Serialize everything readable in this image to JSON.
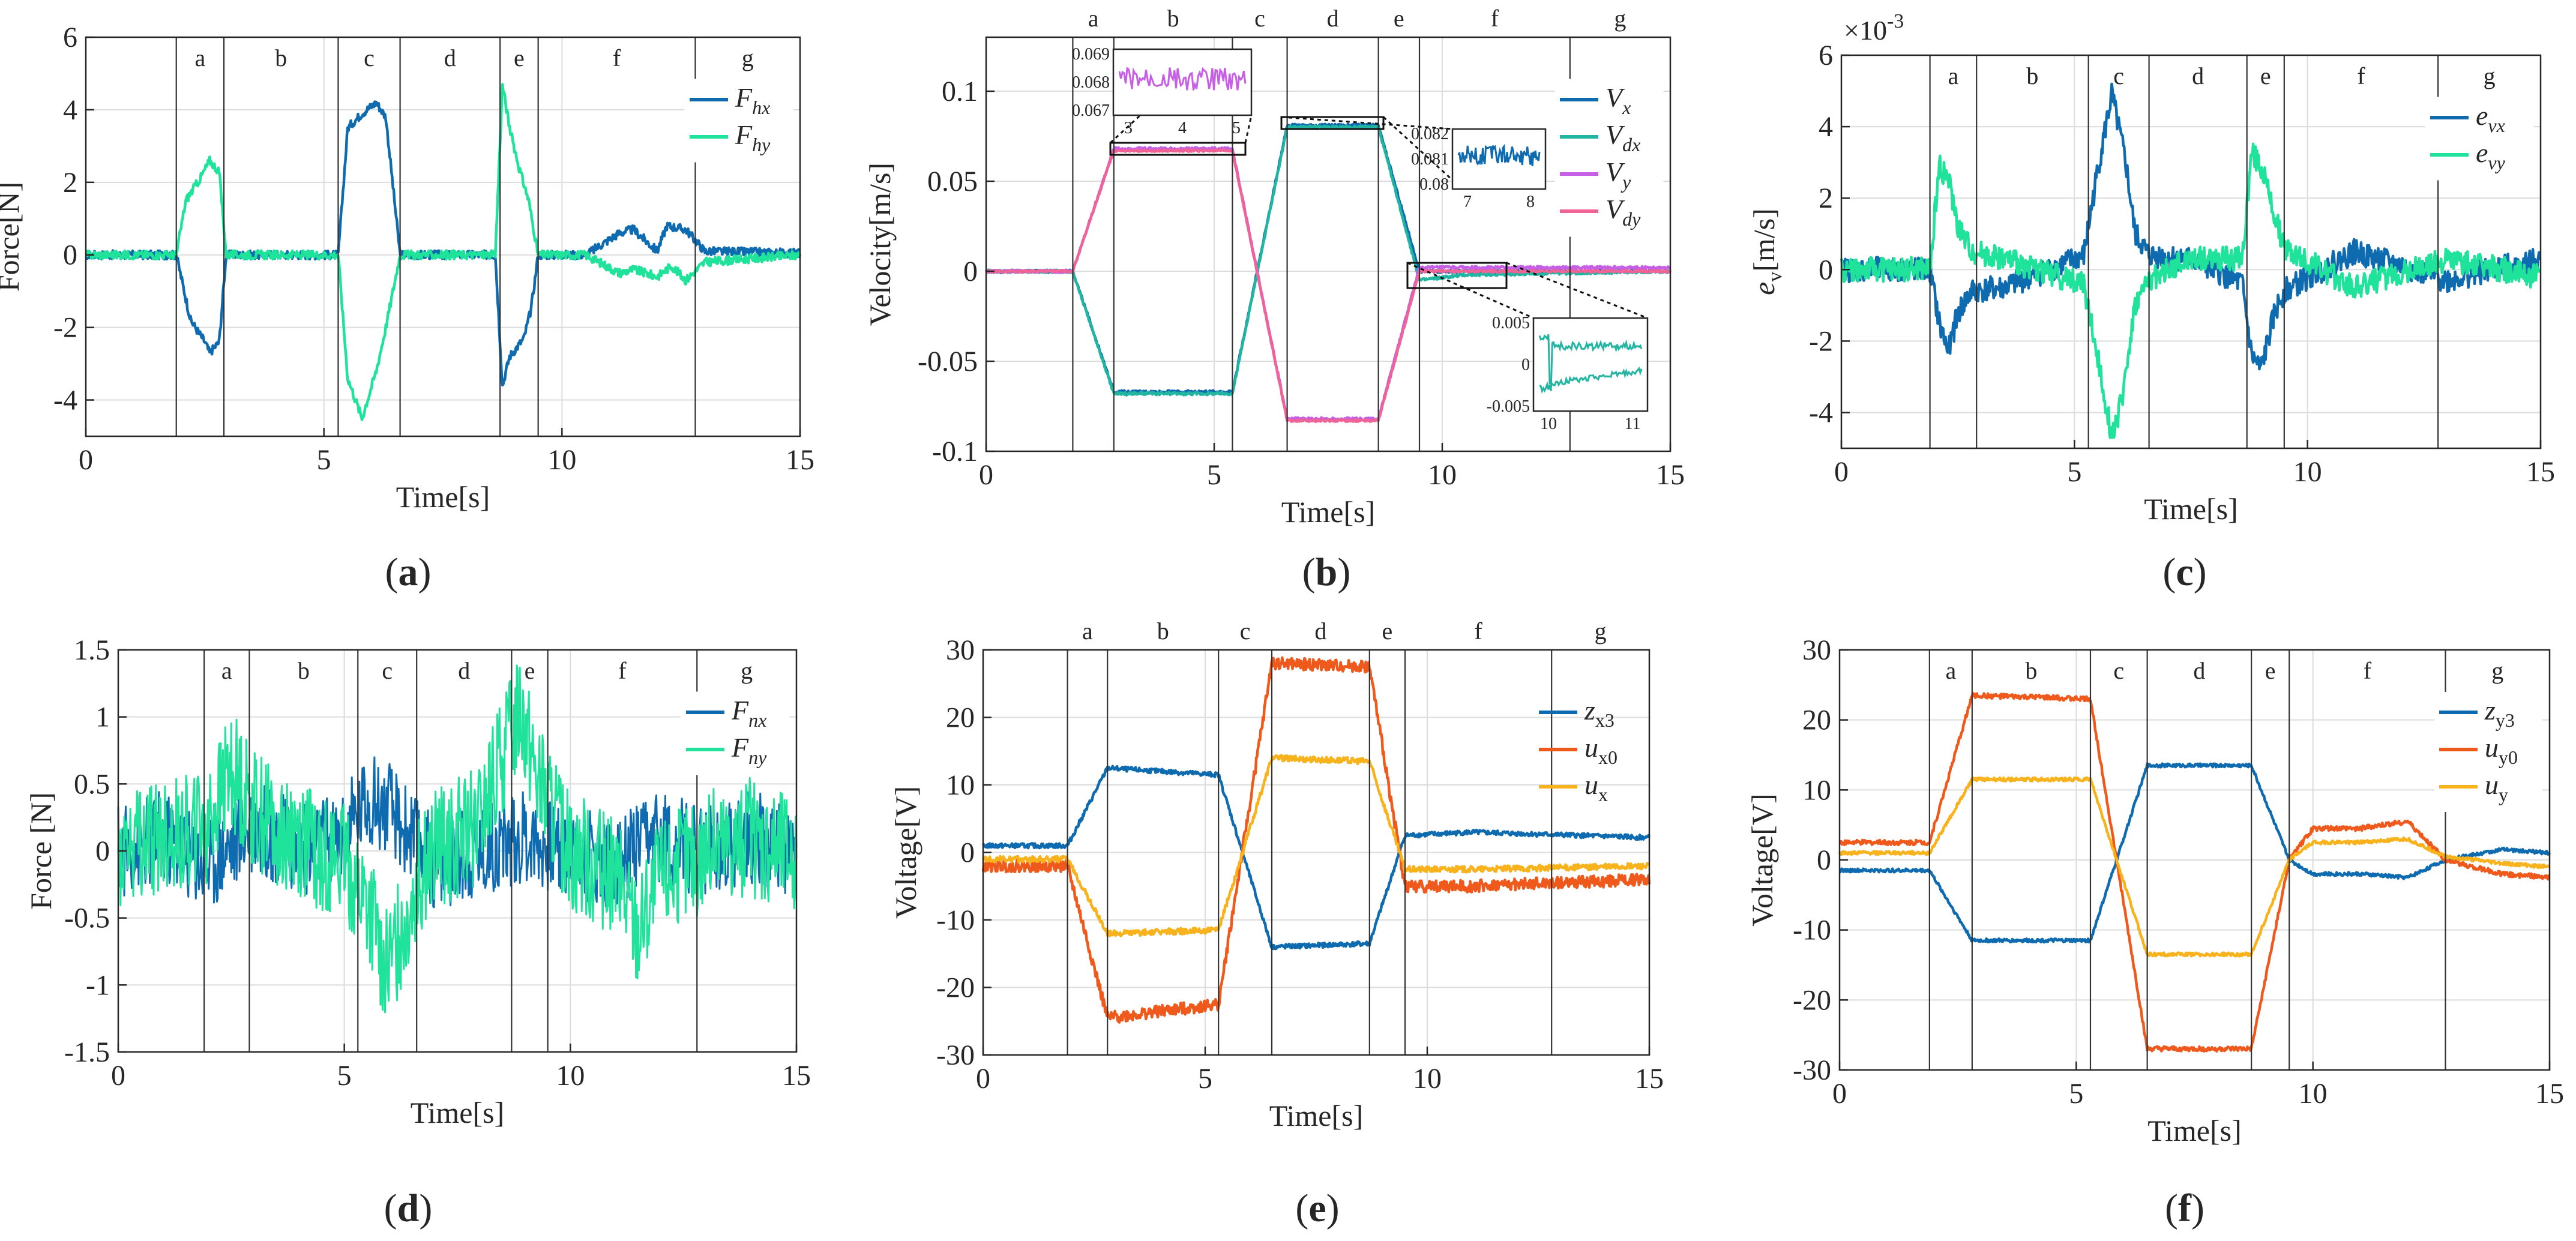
{
  "figure": {
    "panel_labels": [
      "(a)",
      "(b)",
      "(c)",
      "(d)",
      "(e)",
      "(f)"
    ]
  },
  "colors": {
    "blue": "#0f6bb0",
    "green": "#1fe39a",
    "teal": "#22b5a2",
    "magenta": "#c65ee6",
    "pink": "#ef6396",
    "orange": "#ef5a1c",
    "yellow": "#f7b21c"
  },
  "chart_data": [
    {
      "id": "a",
      "type": "line",
      "xlabel": "Time[s]",
      "ylabel": "Force[N]",
      "xlim": [
        0,
        15
      ],
      "ylim": [
        -5,
        6
      ],
      "xticks": [
        0,
        5,
        10,
        15
      ],
      "yticks": [
        -4,
        -2,
        0,
        2,
        4,
        6
      ],
      "grid": true,
      "legend": "top-right",
      "phase_boundaries": [
        1.9,
        2.9,
        5.3,
        6.6,
        8.7,
        9.5,
        12.8
      ],
      "phase_labels": [
        "a",
        "b",
        "c",
        "d",
        "e",
        "f",
        "g"
      ],
      "series": [
        {
          "name": "F",
          "sub": "hx",
          "color": "blue",
          "x": [
            0,
            1.9,
            2.2,
            2.5,
            2.6,
            2.8,
            2.95,
            3.5,
            5.3,
            5.5,
            5.8,
            6.1,
            6.3,
            6.6,
            7.5,
            8.6,
            8.75,
            8.9,
            9.2,
            9.35,
            9.5,
            10.5,
            11.2,
            11.5,
            12,
            12.2,
            12.6,
            13,
            15
          ],
          "y": [
            0,
            0,
            -1.8,
            -2.4,
            -2.7,
            -2.4,
            0,
            0,
            0,
            3.5,
            3.9,
            4.2,
            3.8,
            0,
            0,
            0,
            -3.6,
            -2.8,
            -2.3,
            -1.5,
            0,
            0,
            0.6,
            0.7,
            0.1,
            0.8,
            0.7,
            0.1,
            0.05
          ]
        },
        {
          "name": "F",
          "sub": "hy",
          "color": "green",
          "x": [
            0,
            1.9,
            2.1,
            2.4,
            2.6,
            2.8,
            2.95,
            3.5,
            5.3,
            5.5,
            5.8,
            6.1,
            6.3,
            6.6,
            7.5,
            8.6,
            8.75,
            8.9,
            9.1,
            9.3,
            9.5,
            10.5,
            11.2,
            11.5,
            12,
            12.3,
            12.6,
            13,
            15
          ],
          "y": [
            0,
            0,
            1.5,
            2.1,
            2.6,
            2.3,
            0,
            0,
            0,
            -3.4,
            -4.5,
            -3.2,
            -2.0,
            0,
            0,
            0,
            4.7,
            3.5,
            2.4,
            1.5,
            0,
            0,
            -0.5,
            -0.4,
            -0.6,
            -0.3,
            -0.7,
            -0.2,
            0
          ]
        }
      ]
    },
    {
      "id": "b",
      "type": "line",
      "xlabel": "Time[s]",
      "ylabel": "Velocity[m/s]",
      "xlim": [
        0,
        15
      ],
      "ylim": [
        -0.1,
        0.13
      ],
      "xticks": [
        0,
        5,
        10,
        15
      ],
      "yticks": [
        -0.1,
        -0.05,
        0,
        0.05,
        0.1
      ],
      "grid": true,
      "legend": "top-right",
      "phase_boundaries": [
        1.9,
        2.8,
        5.4,
        6.6,
        8.6,
        9.5,
        12.8
      ],
      "phase_labels": [
        "a",
        "b",
        "c",
        "d",
        "e",
        "f",
        "g"
      ],
      "series": [
        {
          "name": "V",
          "sub": "x",
          "color": "blue",
          "x": [
            0,
            1.9,
            2.8,
            5.4,
            6.6,
            8.6,
            9.5,
            15
          ],
          "y": [
            0,
            0,
            -0.067,
            -0.067,
            0.081,
            0.081,
            0,
            0
          ]
        },
        {
          "name": "V",
          "sub": "dx",
          "color": "teal",
          "x": [
            0,
            1.9,
            2.8,
            5.4,
            6.6,
            8.6,
            9.5,
            10.5,
            15
          ],
          "y": [
            0,
            0,
            -0.068,
            -0.068,
            0.08,
            0.08,
            -0.005,
            -0.002,
            0
          ]
        },
        {
          "name": "V",
          "sub": "y",
          "color": "magenta",
          "x": [
            0,
            1.9,
            2.8,
            5.4,
            6.6,
            8.6,
            9.5,
            15
          ],
          "y": [
            0,
            0,
            0.068,
            0.068,
            -0.082,
            -0.082,
            0.002,
            0.002
          ]
        },
        {
          "name": "V",
          "sub": "dy",
          "color": "pink",
          "x": [
            0,
            1.9,
            2.8,
            5.4,
            6.6,
            8.6,
            9.5,
            15
          ],
          "y": [
            0,
            0,
            0.067,
            0.067,
            -0.083,
            -0.083,
            0,
            0
          ]
        }
      ],
      "insets": [
        {
          "xticks": [
            "3",
            "4",
            "5"
          ],
          "yticks": [
            "0.069",
            "0.068",
            "0.067"
          ]
        },
        {
          "xticks": [
            "7",
            "8"
          ],
          "yticks": [
            "0.082",
            "0.081",
            "0.08"
          ]
        },
        {
          "xticks": [
            "10",
            "11"
          ],
          "yticks": [
            "0.005",
            "0",
            "-0.005"
          ]
        }
      ]
    },
    {
      "id": "c",
      "type": "line",
      "xlabel": "Time[s]",
      "ylabel_main": "e",
      "ylabel_sub": "v",
      "ylabel_unit": "[m/s]",
      "exponent": "×10",
      "exponent_power": "-3",
      "xlim": [
        0,
        15
      ],
      "ylim": [
        -5,
        6
      ],
      "xticks": [
        0,
        5,
        10,
        15
      ],
      "yticks": [
        -4,
        -2,
        0,
        2,
        4,
        6
      ],
      "grid": true,
      "legend": "top-right",
      "phase_boundaries": [
        1.9,
        2.9,
        5.3,
        6.6,
        8.7,
        9.5,
        12.8
      ],
      "phase_labels": [
        "a",
        "b",
        "c",
        "d",
        "e",
        "f",
        "g"
      ],
      "series": [
        {
          "name": "e",
          "sub": "vx",
          "color": "blue",
          "x": [
            0,
            1.9,
            2.1,
            2.3,
            2.5,
            2.8,
            3.5,
            5.2,
            5.5,
            5.8,
            6.1,
            6.3,
            6.6,
            7.5,
            8.6,
            8.8,
            9.0,
            9.3,
            9.5,
            11,
            13,
            15
          ],
          "y": [
            0,
            0,
            -1.5,
            -2.3,
            -1.2,
            -0.6,
            -0.5,
            0.4,
            2.8,
            4.9,
            3.0,
            1.0,
            0.4,
            0.3,
            -0.4,
            -2.4,
            -2.8,
            -1.2,
            -0.6,
            0.5,
            -0.3,
            0.3
          ]
        },
        {
          "name": "e",
          "sub": "vy",
          "color": "green",
          "x": [
            0,
            1.9,
            2.1,
            2.3,
            2.5,
            2.8,
            3.5,
            5.2,
            5.5,
            5.8,
            6.0,
            6.3,
            6.6,
            7.5,
            8.6,
            8.8,
            9.0,
            9.3,
            9.5,
            11,
            13,
            15
          ],
          "y": [
            0,
            0,
            2.9,
            2.5,
            1.2,
            0.5,
            0.3,
            -0.4,
            -2.5,
            -4.6,
            -3.8,
            -1.0,
            -0.3,
            0.3,
            0.3,
            3.3,
            2.9,
            1.5,
            0.6,
            -0.5,
            0.3,
            -0.2
          ]
        }
      ]
    },
    {
      "id": "d",
      "type": "line",
      "xlabel": "Time[s]",
      "ylabel": "Force [N]",
      "xlim": [
        0,
        15
      ],
      "ylim": [
        -1.5,
        1.5
      ],
      "xticks": [
        0,
        5,
        10,
        15
      ],
      "yticks": [
        -1.5,
        -1,
        -0.5,
        0,
        0.5,
        1,
        1.5
      ],
      "grid": true,
      "legend": "top-right",
      "phase_boundaries": [
        1.9,
        2.9,
        5.3,
        6.6,
        8.7,
        9.5,
        12.8
      ],
      "phase_labels": [
        "a",
        "b",
        "c",
        "d",
        "e",
        "f",
        "g"
      ],
      "series": [
        {
          "name": "F",
          "sub": "nx",
          "color": "blue",
          "x": [
            0,
            1,
            2,
            3,
            4,
            5,
            5.5,
            6,
            6.5,
            7,
            8,
            9,
            10,
            11,
            12,
            13,
            14,
            15
          ],
          "y": [
            0,
            0.1,
            -0.1,
            0.2,
            0,
            0.1,
            0.4,
            0.3,
            0.1,
            -0.1,
            0,
            0.1,
            0,
            -0.1,
            0.1,
            0,
            0.1,
            0
          ]
        },
        {
          "name": "F",
          "sub": "ny",
          "color": "green",
          "x": [
            0,
            1,
            2,
            2.5,
            3,
            4,
            5,
            5.5,
            6,
            6.5,
            7,
            8,
            8.9,
            9.3,
            10,
            11,
            11.5,
            12,
            13,
            14,
            15
          ],
          "y": [
            0,
            0.1,
            0.2,
            0.6,
            0.3,
            0.1,
            -0.1,
            -0.4,
            -0.9,
            -0.3,
            0,
            0.2,
            1.1,
            0.5,
            0,
            -0.2,
            -0.6,
            -0.2,
            0,
            0.1,
            0
          ]
        }
      ]
    },
    {
      "id": "e",
      "type": "line",
      "xlabel": "Time[s]",
      "ylabel": "Voltage[V]",
      "xlim": [
        0,
        15
      ],
      "ylim": [
        -30,
        30
      ],
      "xticks": [
        0,
        5,
        10,
        15
      ],
      "yticks": [
        -30,
        -20,
        -10,
        0,
        10,
        20,
        30
      ],
      "grid": true,
      "legend": "top-right",
      "phase_boundaries": [
        1.9,
        2.8,
        5.3,
        6.5,
        8.7,
        9.5,
        12.8
      ],
      "phase_labels": [
        "a",
        "b",
        "c",
        "d",
        "e",
        "f",
        "g"
      ],
      "series": [
        {
          "name": "z",
          "sub": "x3",
          "color": "blue",
          "x": [
            0,
            1.9,
            2.8,
            5.3,
            6.5,
            8.7,
            9.5,
            11,
            15
          ],
          "y": [
            1,
            1,
            12.5,
            11.5,
            -14,
            -13.5,
            2.5,
            3,
            2.2
          ]
        },
        {
          "name": "u",
          "sub": "x0",
          "color": "orange",
          "x": [
            0,
            1.9,
            2.8,
            5.3,
            6.5,
            8.7,
            9.5,
            11,
            15
          ],
          "y": [
            -2,
            -2,
            -24.5,
            -22.5,
            28,
            27.5,
            -5,
            -5,
            -4
          ]
        },
        {
          "name": "u",
          "sub": "x",
          "color": "yellow",
          "x": [
            0,
            1.9,
            2.8,
            5.3,
            6.5,
            8.7,
            9.5,
            11,
            15
          ],
          "y": [
            -1,
            -1,
            -12,
            -11.5,
            14,
            13.5,
            -2.5,
            -2.5,
            -2
          ]
        }
      ]
    },
    {
      "id": "f",
      "type": "line",
      "xlabel": "Time[s]",
      "ylabel": "Voltage[V]",
      "xlim": [
        0,
        15
      ],
      "ylim": [
        -30,
        30
      ],
      "xticks": [
        0,
        5,
        10,
        15
      ],
      "yticks": [
        -30,
        -20,
        -10,
        0,
        10,
        20,
        30
      ],
      "grid": true,
      "legend": "top-right",
      "phase_boundaries": [
        1.9,
        2.8,
        5.3,
        6.5,
        8.7,
        9.5,
        12.8
      ],
      "phase_labels": [
        "a",
        "b",
        "c",
        "d",
        "e",
        "f",
        "g"
      ],
      "series": [
        {
          "name": "z",
          "sub": "y3",
          "color": "blue",
          "x": [
            0,
            1.9,
            2.8,
            5.3,
            6.5,
            8.7,
            9.5,
            10,
            11,
            12,
            12.8,
            14,
            15
          ],
          "y": [
            -1.5,
            -1.5,
            -11.5,
            -11.5,
            13.5,
            13.5,
            0,
            -2,
            -2,
            -2.5,
            0,
            1.5,
            1
          ]
        },
        {
          "name": "u",
          "sub": "y0",
          "color": "orange",
          "x": [
            0,
            1.9,
            2.8,
            5.3,
            6.5,
            8.7,
            9.5,
            10,
            11,
            12,
            12.8,
            14,
            15
          ],
          "y": [
            2.5,
            2.5,
            23.5,
            23,
            -27,
            -27,
            0,
            4.5,
            4.5,
            5.5,
            0,
            -2,
            -2.5
          ]
        },
        {
          "name": "u",
          "sub": "y",
          "color": "yellow",
          "x": [
            0,
            1.9,
            2.8,
            5.3,
            6.5,
            8.7,
            9.5,
            10,
            11,
            12,
            12.8,
            14,
            15
          ],
          "y": [
            1,
            1,
            11.5,
            11.5,
            -13.5,
            -13.5,
            0,
            2.5,
            2.5,
            3,
            0.5,
            -0.5,
            -1
          ]
        }
      ]
    }
  ]
}
